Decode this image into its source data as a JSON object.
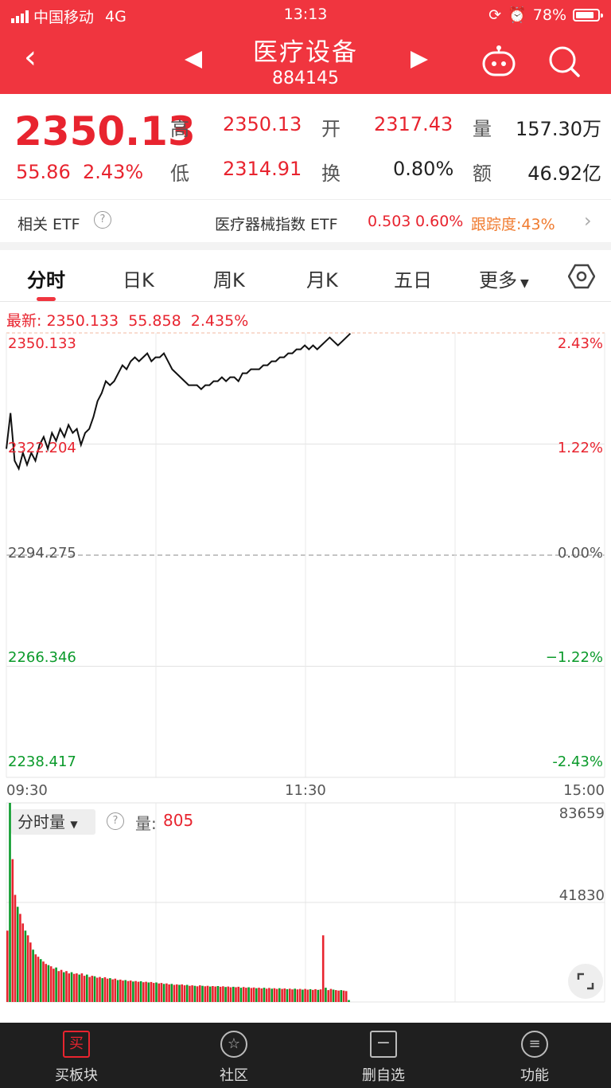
{
  "status": {
    "carrier": "中国移动",
    "network": "4G",
    "time": "13:13",
    "battery": "78%"
  },
  "header": {
    "title": "医疗设备",
    "code": "884145"
  },
  "quote": {
    "last": "2350.13",
    "change": "55.86",
    "pct": "2.43%",
    "high_label": "高",
    "high": "2350.13",
    "open_label": "开",
    "open": "2317.43",
    "vol_label": "量",
    "vol": "157.30万",
    "low_label": "低",
    "low": "2314.91",
    "turn_label": "换",
    "turn": "0.80%",
    "amt_label": "额",
    "amt": "46.92亿"
  },
  "etf": {
    "label": "相关 ETF",
    "name": "医疗器械指数 ETF",
    "price": "0.503",
    "pct": "0.60%",
    "track": "跟踪度:43%"
  },
  "tabs": [
    "分时",
    "日K",
    "周K",
    "月K",
    "五日",
    "更多"
  ],
  "latest": {
    "label": "最新:",
    "price": "2350.133",
    "change": "55.858",
    "pct": "2.435%"
  },
  "chart_data": {
    "type": "line",
    "y_left": [
      "2350.133",
      "2322.204",
      "2294.275",
      "2266.346",
      "2238.417"
    ],
    "y_right": [
      "2.43%",
      "1.22%",
      "0.00%",
      "−1.22%",
      "-2.43%"
    ],
    "x_labels": [
      "09:30",
      "11:30",
      "15:00"
    ],
    "ylim": [
      2238.417,
      2350.133
    ],
    "baseline": 2294.275,
    "series": [
      {
        "values": [
          2321,
          2330,
          2318,
          2316,
          2320,
          2317,
          2320,
          2318,
          2322,
          2324,
          2321,
          2325,
          2323,
          2326,
          2324,
          2327,
          2325,
          2326,
          2322,
          2325,
          2326,
          2329,
          2333,
          2335,
          2338,
          2337,
          2338,
          2340,
          2342,
          2341,
          2343,
          2344,
          2343,
          2344,
          2345,
          2343,
          2344,
          2344,
          2345,
          2343,
          2341,
          2340,
          2339,
          2338,
          2337,
          2337,
          2337,
          2336,
          2337,
          2337,
          2338,
          2338,
          2339,
          2338,
          2339,
          2339,
          2338,
          2340,
          2340,
          2341,
          2341,
          2341,
          2342,
          2342,
          2343,
          2343,
          2344,
          2344,
          2345,
          2345,
          2346,
          2346,
          2347,
          2346,
          2347,
          2346,
          2347,
          2348,
          2349,
          2348,
          2347,
          2348,
          2349,
          2350
        ]
      }
    ],
    "volume": {
      "ymax_label": "83659",
      "ymid_label": "41830",
      "current_label": "量:",
      "current": "805",
      "values": [
        30000,
        83659,
        60000,
        45000,
        40000,
        37000,
        33000,
        30000,
        28000,
        25000,
        22000,
        20000,
        19000,
        18000,
        17000,
        16000,
        15500,
        15000,
        14000,
        14500,
        13000,
        13500,
        12500,
        13000,
        12000,
        12500,
        11800,
        12000,
        11500,
        12000,
        11000,
        11500,
        10500,
        11000,
        10800,
        10200,
        10500,
        10000,
        10400,
        9800,
        10000,
        9500,
        9800,
        9200,
        9400,
        9000,
        9200,
        8800,
        9000,
        8600,
        8800,
        8500,
        8700,
        8300,
        8500,
        8200,
        8400,
        8000,
        8200,
        7800,
        8000,
        7600,
        7800,
        7400,
        7600,
        7200,
        7400,
        7200,
        7400,
        7000,
        7200,
        6800,
        7000,
        6800,
        6600,
        7000,
        6800,
        6600,
        6800,
        6500,
        6700,
        6500,
        6700,
        6400,
        6600,
        6300,
        6500,
        6200,
        6400,
        6200,
        6400,
        6000,
        6300,
        6000,
        6200,
        5900,
        6100,
        5800,
        6000,
        5700,
        6000,
        5600,
        5900,
        5600,
        5800,
        5500,
        5800,
        5500,
        5700,
        5400,
        5600,
        5300,
        5600,
        5300,
        5500,
        5200,
        5500,
        5200,
        5400,
        5100,
        5400,
        5100,
        5300,
        28000,
        6000,
        5000,
        5500,
        5200,
        5000,
        4800,
        5000,
        4800,
        4600,
        805
      ]
    }
  },
  "vol_tab": "分时量",
  "nav": [
    "买板块",
    "社区",
    "删自选",
    "功能"
  ],
  "colors": {
    "red": "#e8242f",
    "green": "#0a9a2a",
    "header": "#f0353f"
  }
}
